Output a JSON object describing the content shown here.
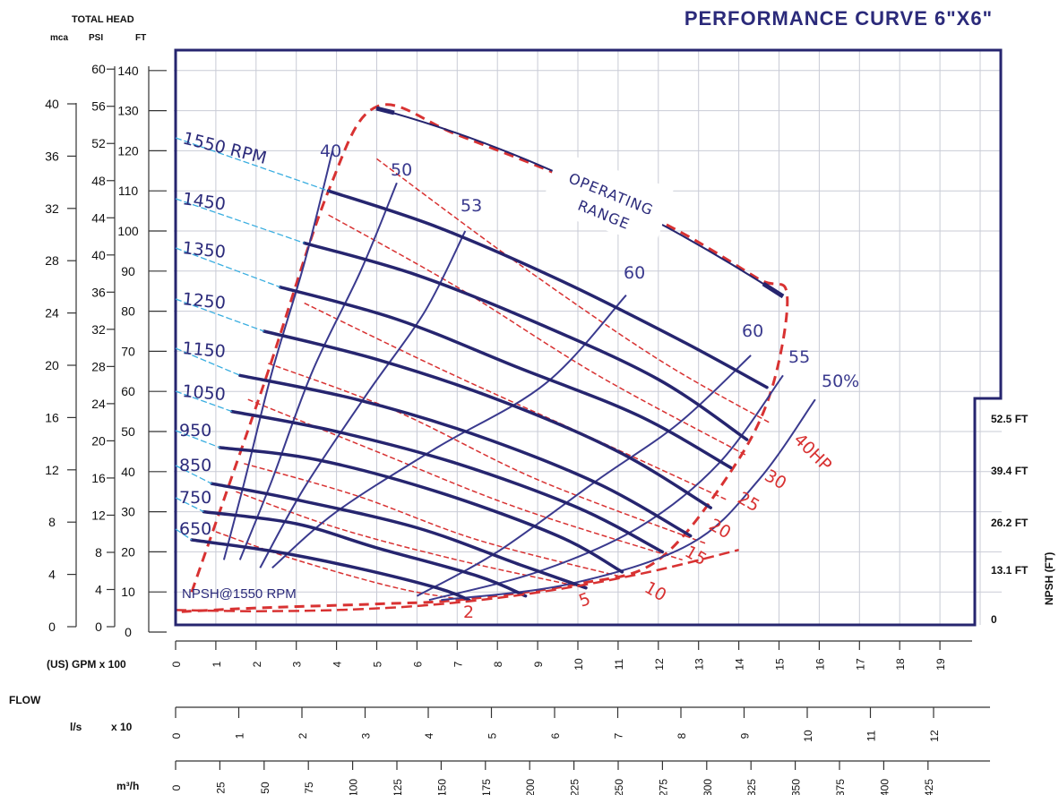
{
  "title": "PERFORMANCE CURVE 6\"X6\"",
  "headers": {
    "total_head": "TOTAL HEAD",
    "mca": "mca",
    "psi": "PSI",
    "ft": "FT",
    "gpm_axis": "(US) GPM  x 100",
    "flow": "FLOW",
    "ls": "l/s",
    "x10": "x 10",
    "m3h": "m³/h",
    "npsh_ft": "NPSH  (FT)"
  },
  "annotations": {
    "operating_range_1": "OPERATING",
    "operating_range_2": "RANGE",
    "npsh_curve": "NPSH@1550 RPM"
  },
  "colors": {
    "pump": "#26256f",
    "efficiency": "#3a3a8e",
    "power": "#d83232",
    "leader": "#3aaee0",
    "grid": "#c9cbd6",
    "frame": "#26256f"
  },
  "chart_data": {
    "type": "line",
    "title": "PERFORMANCE CURVE 6\"X6\"",
    "xlabel": "(US) GPM x 100",
    "ylabel": "TOTAL HEAD (FT)",
    "x_range": [
      0,
      20
    ],
    "y_range": [
      0,
      140
    ],
    "grid": true,
    "axes": {
      "gpm_ticks": [
        "0",
        "1",
        "2",
        "3",
        "4",
        "5",
        "6",
        "7",
        "8",
        "9",
        "10",
        "11",
        "12",
        "13",
        "14",
        "15",
        "16",
        "17",
        "18",
        "19"
      ],
      "ft_ticks": [
        "0",
        "10",
        "20",
        "30",
        "40",
        "50",
        "60",
        "70",
        "80",
        "90",
        "100",
        "110",
        "120",
        "130",
        "140"
      ],
      "psi_ticks": [
        "0",
        "4",
        "8",
        "12",
        "16",
        "20",
        "24",
        "28",
        "32",
        "36",
        "40",
        "44",
        "48",
        "52",
        "56",
        "60"
      ],
      "mca_ticks": [
        "0",
        "4",
        "8",
        "12",
        "16",
        "20",
        "24",
        "28",
        "32",
        "36",
        "40"
      ],
      "ls_ticks": [
        "0",
        "1",
        "2",
        "3",
        "4",
        "5",
        "6",
        "7",
        "8",
        "9",
        "10",
        "11",
        "12"
      ],
      "m3h_ticks": [
        "0",
        "25",
        "50",
        "75",
        "100",
        "125",
        "150",
        "175",
        "200",
        "225",
        "250",
        "275",
        "300",
        "325",
        "350",
        "375",
        "400",
        "425"
      ],
      "npsh_ticks": [
        "52.5 FT",
        "39.4 FT",
        "26.2 FT",
        "13.1 FT",
        "0"
      ]
    },
    "speed_curves": [
      {
        "name": "1550 RPM",
        "x": [
          3.8,
          6.5,
          9.5,
          12.5,
          14.7
        ],
        "y": [
          110,
          101,
          88,
          73,
          61
        ]
      },
      {
        "name": "1450",
        "x": [
          3.2,
          6.0,
          9.0,
          12.0,
          14.2
        ],
        "y": [
          97,
          89,
          77,
          63,
          48
        ]
      },
      {
        "name": "1350",
        "x": [
          2.6,
          5.5,
          8.5,
          11.5,
          13.8
        ],
        "y": [
          86,
          78,
          66,
          54,
          41
        ]
      },
      {
        "name": "1250",
        "x": [
          2.2,
          5.0,
          8.0,
          11.0,
          13.3
        ],
        "y": [
          75,
          68,
          58,
          45,
          31
        ]
      },
      {
        "name": "1150",
        "x": [
          1.6,
          4.5,
          7.5,
          10.5,
          12.8
        ],
        "y": [
          64,
          58,
          49,
          37,
          24
        ]
      },
      {
        "name": "1050",
        "x": [
          1.4,
          4.0,
          7.0,
          10.0,
          12.1
        ],
        "y": [
          55,
          50,
          42,
          31,
          20
        ]
      },
      {
        "name": "950",
        "x": [
          1.1,
          3.5,
          6.5,
          9.5,
          11.1
        ],
        "y": [
          46,
          43,
          35,
          24,
          15
        ]
      },
      {
        "name": "850",
        "x": [
          0.9,
          3.0,
          6.0,
          8.5,
          10.2
        ],
        "y": [
          37,
          33,
          26,
          17,
          11
        ]
      },
      {
        "name": "750",
        "x": [
          0.7,
          3.0,
          5.0,
          7.5,
          8.7
        ],
        "y": [
          30,
          27,
          21,
          14,
          9
        ]
      },
      {
        "name": "650",
        "x": [
          0.4,
          2.5,
          4.5,
          6.5,
          7.3
        ],
        "y": [
          23,
          20,
          16,
          11,
          8
        ]
      }
    ],
    "efficiency_curves": [
      {
        "name": "40",
        "x": [
          1.2,
          1.7,
          2.4,
          3.2,
          3.9
        ],
        "y": [
          18,
          37,
          65,
          92,
          120
        ]
      },
      {
        "name": "50",
        "x": [
          1.6,
          2.4,
          3.4,
          4.6,
          5.5
        ],
        "y": [
          18,
          38,
          65,
          90,
          112
        ]
      },
      {
        "name": "53",
        "x": [
          2.1,
          3.2,
          4.8,
          6.2,
          7.2
        ],
        "y": [
          16,
          36,
          60,
          80,
          100
        ]
      },
      {
        "name": "60",
        "x": [
          2.4,
          4.0,
          6.5,
          9.2,
          11.2
        ],
        "y": [
          16,
          30,
          46,
          62,
          84
        ]
      },
      {
        "name": "60",
        "x": [
          6.0,
          8.0,
          10.5,
          12.5,
          14.3
        ],
        "y": [
          9,
          20,
          38,
          52,
          69
        ]
      },
      {
        "name": "55",
        "x": [
          6.3,
          9.0,
          11.5,
          13.5,
          15.1
        ],
        "y": [
          8,
          15,
          26,
          42,
          64
        ]
      },
      {
        "name": "50%",
        "x": [
          6.6,
          9.8,
          12.8,
          14.5,
          15.9
        ],
        "y": [
          8,
          12,
          22,
          38,
          58
        ]
      }
    ],
    "power_curves": [
      {
        "name": "2",
        "x": [
          1.0,
          3.0,
          5.5,
          7.2
        ],
        "y": [
          25,
          18,
          11,
          8
        ]
      },
      {
        "name": "5",
        "x": [
          1.5,
          4.0,
          7.0,
          10.2
        ],
        "y": [
          35,
          26,
          18,
          11
        ]
      },
      {
        "name": "10",
        "x": [
          1.7,
          4.5,
          7.5,
          11.0
        ],
        "y": [
          42,
          34,
          23,
          14
        ]
      },
      {
        "name": "15",
        "x": [
          1.8,
          5.0,
          8.5,
          12.6
        ],
        "y": [
          58,
          45,
          31,
          18
        ]
      },
      {
        "name": "20",
        "x": [
          2.3,
          5.5,
          9.0,
          13.2
        ],
        "y": [
          67,
          55,
          38,
          22
        ]
      },
      {
        "name": "25",
        "x": [
          3.2,
          6.5,
          10.0,
          13.7
        ],
        "y": [
          82,
          66,
          50,
          33
        ]
      },
      {
        "name": "30",
        "x": [
          3.8,
          7.0,
          10.5,
          14.2
        ],
        "y": [
          104,
          86,
          64,
          44
        ]
      },
      {
        "name": "40HP",
        "x": [
          5.0,
          8.5,
          12.0,
          14.8
        ],
        "y": [
          118,
          92,
          68,
          52
        ]
      }
    ],
    "operating_range_boundary": {
      "x": [
        0.4,
        2.2,
        3.8,
        5.0,
        7.0,
        10.0,
        12.5,
        14.5,
        15.2,
        14.8,
        13.8,
        12.0,
        10.0,
        7.0,
        5.0,
        2.0,
        0.0
      ],
      "y": [
        10,
        62,
        110,
        131,
        124,
        112,
        100,
        88,
        84,
        60,
        40,
        18,
        12,
        8,
        7,
        6,
        5
      ]
    },
    "npsh_curve": {
      "name": "NPSH@1550 RPM",
      "x": [
        0.0,
        2.0,
        4.0,
        6.0,
        8.0,
        10.0,
        12.0,
        14.0
      ],
      "y": [
        5.5,
        5.2,
        5.5,
        6.5,
        8.5,
        11.5,
        15.5,
        20.5
      ]
    }
  }
}
